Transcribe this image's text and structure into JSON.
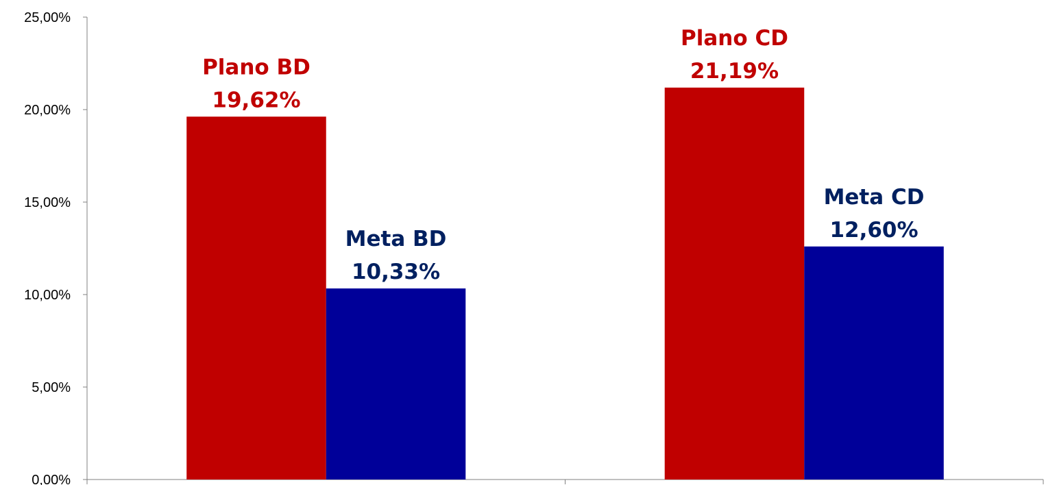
{
  "chart_data": {
    "type": "bar",
    "categories": [
      "",
      ""
    ],
    "series": [
      {
        "values": [
          19.62,
          21.19
        ],
        "labels": [
          [
            "Plano BD",
            "19,62%"
          ],
          [
            "Plano CD",
            "21,19%"
          ]
        ],
        "color": "#C00000"
      },
      {
        "values": [
          10.33,
          12.6
        ],
        "labels": [
          [
            "Meta BD",
            "10,33%"
          ],
          [
            "Meta CD",
            "12,60%"
          ]
        ],
        "color": "#000099"
      }
    ],
    "ylim": [
      0,
      25
    ],
    "yticks": [
      0,
      5,
      10,
      15,
      20,
      25
    ],
    "ytick_labels": [
      "0,00%",
      "5,00%",
      "10,00%",
      "15,00%",
      "20,00%",
      "25,00%"
    ],
    "label_colors": [
      "#C00000",
      "#002060"
    ],
    "grid": false,
    "legend": "none",
    "title": "",
    "xlabel": "",
    "ylabel": ""
  }
}
